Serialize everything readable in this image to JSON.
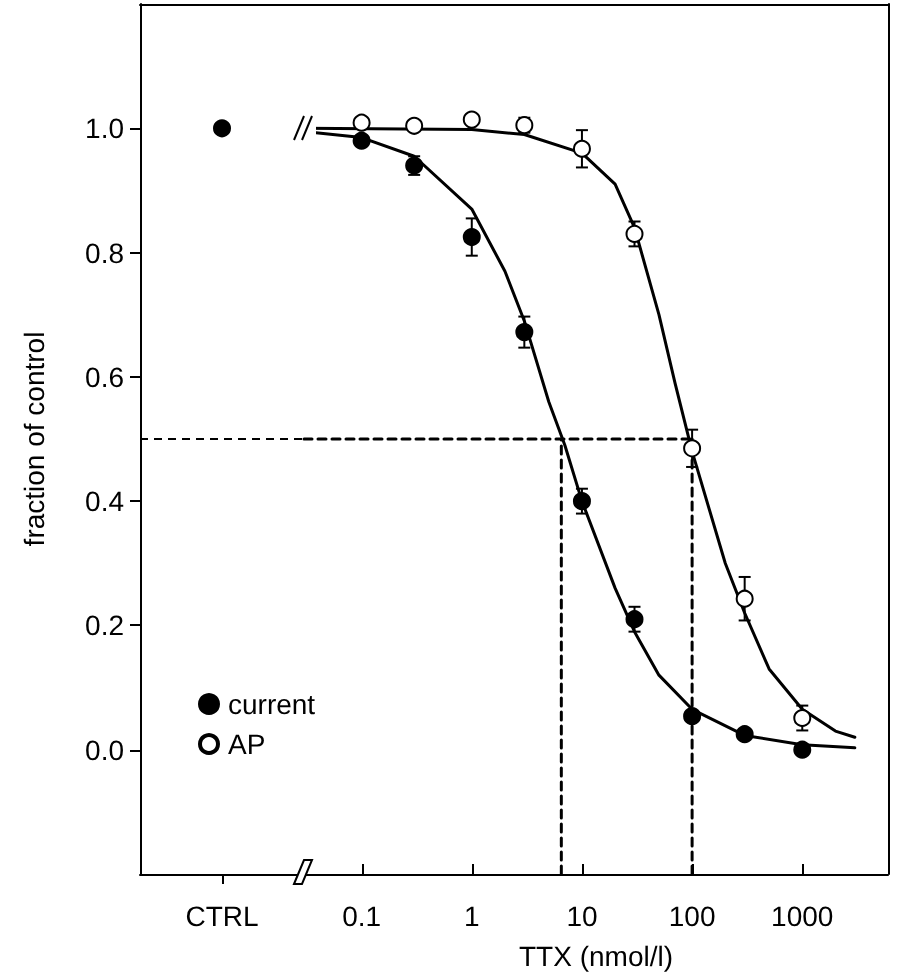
{
  "chart_data": [
    {
      "type": "scatter",
      "ylabel": "fraction of control",
      "categories": [
        "CTRL"
      ],
      "ylim": [
        -0.2,
        1.2
      ],
      "yticks": [
        {
          "value": 0,
          "label": "0.0"
        },
        0.2,
        0.4,
        0.6,
        0.8,
        {
          "value": 1,
          "label": "1.0"
        }
      ],
      "grid": false,
      "marker": "circle",
      "ref_lines": [
        {
          "axis": "y",
          "value": 0.5,
          "color": "#000000",
          "line_style": "dashed"
        }
      ],
      "series": [
        {
          "color": "#000000",
          "values": [
            1.0
          ]
        }
      ]
    },
    {
      "type": "scatter",
      "xlabel": "TTX (nmol/l)",
      "log": "x",
      "xlim": [
        0.03,
        6000
      ],
      "xticks": [
        0.1,
        1,
        10,
        100,
        1000
      ],
      "ylim": [
        -0.2,
        1.2
      ],
      "yticks": [
        0,
        0.2,
        0.4,
        0.6,
        0.8,
        1
      ],
      "tick_labels": "x",
      "grid": false,
      "legend": "bottom left",
      "marker": "circle",
      "series": [
        {
          "type": "line",
          "color": "#000000",
          "marker": "none",
          "x": [
            0.03,
            0.1,
            0.3,
            1,
            2,
            3,
            5,
            7,
            10,
            20,
            30,
            50,
            100,
            300,
            1000,
            3000
          ],
          "values": [
            0.995,
            0.985,
            0.955,
            0.87,
            0.77,
            0.69,
            0.56,
            0.49,
            0.4,
            0.26,
            0.19,
            0.12,
            0.065,
            0.023,
            0.008,
            0.003
          ]
        },
        {
          "type": "line",
          "color": "#000000",
          "marker": "none",
          "x": [
            0.03,
            1,
            3,
            10,
            20,
            30,
            50,
            70,
            100,
            200,
            300,
            500,
            1000,
            2000,
            3000
          ],
          "values": [
            1.0,
            0.998,
            0.99,
            0.96,
            0.91,
            0.84,
            0.7,
            0.59,
            0.48,
            0.3,
            0.22,
            0.13,
            0.065,
            0.03,
            0.02
          ]
        },
        {
          "type": "line",
          "color": "#000000",
          "marker": "none",
          "line_style": "dashed",
          "x": [
            0.03,
            100
          ],
          "values": [
            0.5,
            0.5
          ]
        },
        {
          "type": "line",
          "color": "#000000",
          "marker": "none",
          "line_style": "dashed",
          "x": [
            6.5,
            6.5
          ],
          "values": [
            -0.2,
            0.5
          ]
        },
        {
          "type": "line",
          "color": "#000000",
          "marker": "none",
          "line_style": "dashed",
          "x": [
            100,
            100
          ],
          "values": [
            -0.2,
            0.5
          ]
        },
        {
          "name": "current",
          "color": "#000000",
          "x": [
            0.1,
            0.3,
            1,
            3,
            10,
            30,
            100,
            300,
            1000
          ],
          "values": [
            0.98,
            0.94,
            0.825,
            0.672,
            0.4,
            0.21,
            0.054,
            0.025,
            0.0
          ],
          "errors": [
            null,
            0.015,
            0.03,
            0.025,
            0.02,
            0.02,
            null,
            null,
            null
          ]
        },
        {
          "name": "AP",
          "color": "#ffffff",
          "x": [
            0.1,
            0.3,
            1,
            3,
            10,
            30,
            100,
            300,
            1000
          ],
          "values": [
            1.009,
            1.004,
            1.014,
            1.005,
            0.967,
            0.83,
            0.485,
            0.243,
            0.051
          ],
          "errors": [
            null,
            null,
            null,
            0.012,
            0.03,
            0.02,
            0.03,
            0.035,
            0.02
          ]
        }
      ]
    }
  ]
}
